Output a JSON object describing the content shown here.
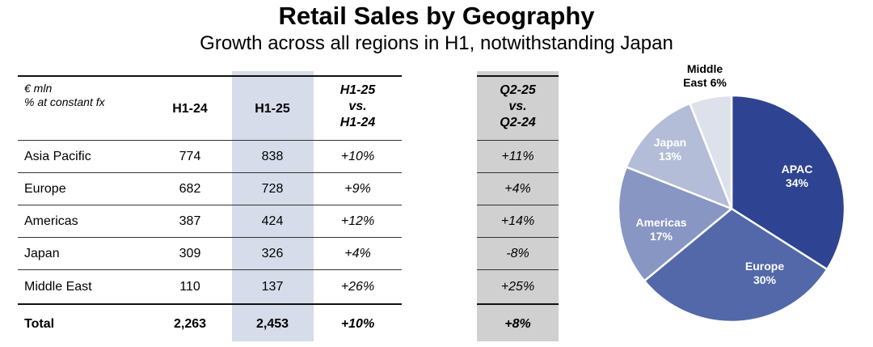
{
  "title": "Retail Sales by Geography",
  "subtitle": "Growth across all regions in H1, notwithstanding Japan",
  "table": {
    "unit_line1": "€ mln",
    "unit_line2": "% at constant fx",
    "col_h124": "H1-24",
    "col_h125": "H1-25",
    "col_growth": [
      "H1-25",
      "vs.",
      "H1-24"
    ],
    "col_q2": [
      "Q2-25",
      "vs.",
      "Q2-24"
    ],
    "rows": [
      {
        "label": "Asia Pacific",
        "h124": "774",
        "h125": "838",
        "growth": "+10%",
        "q2": "+11%"
      },
      {
        "label": "Europe",
        "h124": "682",
        "h125": "728",
        "growth": "+9%",
        "q2": "+4%"
      },
      {
        "label": "Americas",
        "h124": "387",
        "h125": "424",
        "growth": "+12%",
        "q2": "+14%"
      },
      {
        "label": "Japan",
        "h124": "309",
        "h125": "326",
        "growth": "+4%",
        "q2": "-8%"
      },
      {
        "label": "Middle East",
        "h124": "110",
        "h125": "137",
        "growth": "+26%",
        "q2": "+25%"
      }
    ],
    "total": {
      "label": "Total",
      "h124": "2,263",
      "h125": "2,453",
      "growth": "+10%",
      "q2": "+8%"
    }
  },
  "chart_data": {
    "type": "pie",
    "labels": [
      "APAC",
      "Europe",
      "Americas",
      "Japan",
      "Middle East"
    ],
    "values": [
      34,
      30,
      17,
      13,
      6
    ],
    "label_texts": [
      [
        "APAC",
        "34%"
      ],
      [
        "Europe",
        "30%"
      ],
      [
        "Americas",
        "17%"
      ],
      [
        "Japan",
        "13%"
      ],
      [
        "Middle",
        "East 6%"
      ]
    ],
    "colors": [
      "#2e4492",
      "#5268a9",
      "#8796c2",
      "#b3bdd7",
      "#dde1ec"
    ],
    "label_colors": [
      "#ffffff",
      "#ffffff",
      "#ffffff",
      "#ffffff",
      "#000000"
    ]
  }
}
